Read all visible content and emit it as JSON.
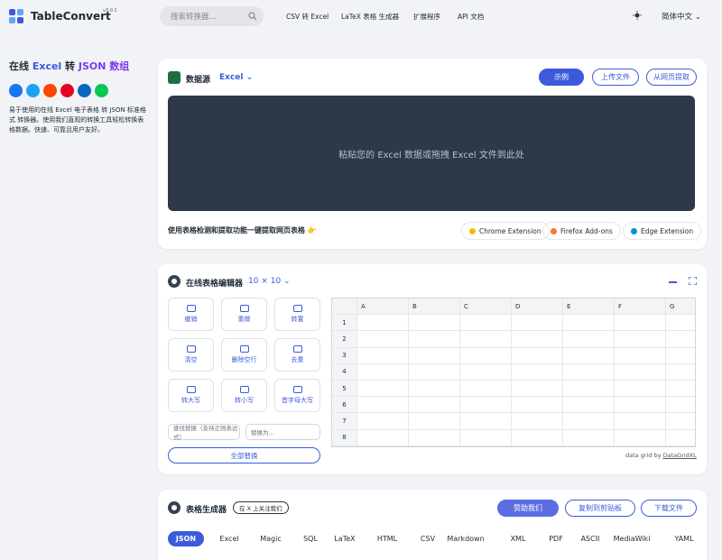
{
  "header": {
    "brand": "TableConvert",
    "version": "v3.0.1",
    "search_placeholder": "搜索转换器...",
    "nav": [
      "CSV 转 Excel",
      "LaTeX 表格 生成器",
      "扩展程序",
      "API 文档"
    ],
    "language": "简体中文"
  },
  "sidebar": {
    "title_parts": [
      "在线 ",
      "Excel",
      " 转 ",
      "JSON 数组"
    ],
    "description": "易于使用的在线 Excel 电子表格 转 JSON 标准格式 转换器。使用我们直观的转换工具轻松转换表格数据。快速、可靠且用户友好。"
  },
  "data_source": {
    "title": "数据源",
    "format": "Excel",
    "buttons": [
      "示例",
      "上传文件",
      "从网页提取"
    ],
    "dropzone": "粘贴您的 Excel 数据或拖拽 Excel 文件到此处",
    "extract_hint": "使用表格检测和提取功能一键提取网页表格 👉",
    "extensions": [
      "Chrome Extension",
      "Firefox Add-ons",
      "Edge Extension"
    ]
  },
  "editor": {
    "title": "在线表格编辑器",
    "size": "10 × 10",
    "tools": [
      "撤销",
      "重做",
      "转置",
      "清空",
      "删除空行",
      "去重",
      "转大写",
      "转小写",
      "首字母大写"
    ],
    "find_placeholder": "查找替换（支持正则表达式）",
    "replace_placeholder": "替换为...",
    "replace_all": "全部替换",
    "columns": [
      "A",
      "B",
      "C",
      "D",
      "E",
      "F",
      "G"
    ],
    "rows": [
      "1",
      "2",
      "3",
      "4",
      "5",
      "6",
      "7",
      "8"
    ],
    "credit_prefix": "data grid by",
    "credit_link": "DataGridXL"
  },
  "generator": {
    "title": "表格生成器",
    "follow": "在 X 上关注我们",
    "buttons": [
      "赞助我们",
      "复制到剪贴板",
      "下载文件"
    ],
    "tabs": [
      "JSON",
      "Excel",
      "Magic",
      "SQL",
      "LaTeX",
      "HTML",
      "CSV",
      "Markdown",
      "XML",
      "PDF",
      "ASCII",
      "MediaWiki",
      "YAML"
    ]
  }
}
